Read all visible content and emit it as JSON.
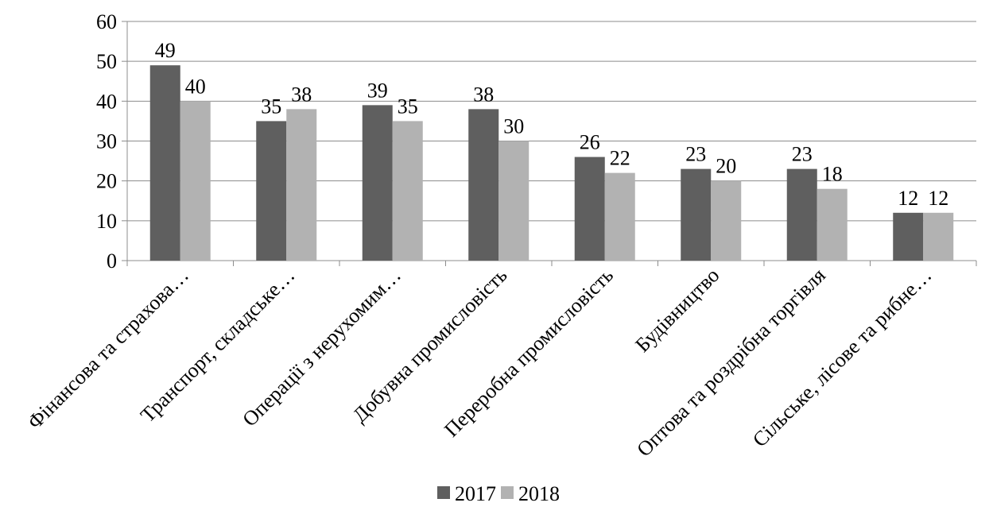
{
  "chart_data": {
    "type": "bar",
    "categories": [
      "Фінансова та страхова…",
      "Транспорт, складське…",
      "Операції з нерухомим…",
      "Добувна промисловість",
      "Переробна промисловість",
      "Будівництво",
      "Оптова та роздрібна торгівля",
      "Сільське, лісове та рибне…"
    ],
    "series": [
      {
        "name": "2017",
        "color": "#5f5f5f",
        "values": [
          49,
          35,
          39,
          38,
          26,
          23,
          23,
          12
        ]
      },
      {
        "name": "2018",
        "color": "#b2b2b2",
        "values": [
          40,
          38,
          35,
          30,
          22,
          20,
          18,
          12
        ]
      }
    ],
    "y_ticks": [
      "0",
      "10",
      "20",
      "30",
      "40",
      "50",
      "60"
    ],
    "ylim": [
      0,
      60
    ],
    "grid": true,
    "data_labels": true,
    "legend_position": "bottom",
    "title": "",
    "xlabel": "",
    "ylabel": ""
  }
}
